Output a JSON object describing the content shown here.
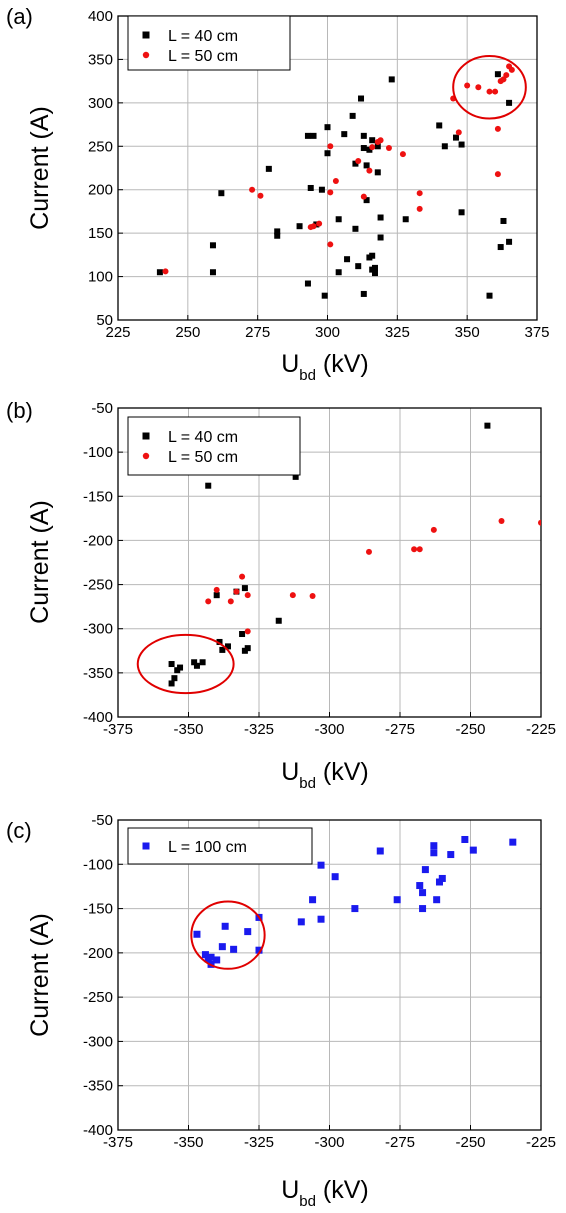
{
  "chart_data": [
    {
      "type": "scatter",
      "panel_label": "(a)",
      "xlabel": "U",
      "xlabel_sub": "bd",
      "xlabel_unit": " (kV)",
      "ylabel": "Current (A)",
      "xlim": [
        225,
        375
      ],
      "ylim": [
        50,
        400
      ],
      "xticks": [
        225,
        250,
        275,
        300,
        325,
        350,
        375
      ],
      "yticks": [
        50,
        100,
        150,
        200,
        250,
        300,
        350,
        400
      ],
      "grid": true,
      "legend_position": "top-left",
      "series": [
        {
          "name": "L = 40 cm",
          "marker": "square",
          "color": "#000000",
          "points": [
            [
              240,
              105
            ],
            [
              259,
              136
            ],
            [
              259,
              105
            ],
            [
              262,
              196
            ],
            [
              279,
              224
            ],
            [
              282,
              152
            ],
            [
              282,
              147
            ],
            [
              290,
              158
            ],
            [
              293,
              92
            ],
            [
              293,
              262
            ],
            [
              294,
              202
            ],
            [
              295,
              262
            ],
            [
              296,
              160
            ],
            [
              298,
              200
            ],
            [
              299,
              78
            ],
            [
              300,
              242
            ],
            [
              300,
              272
            ],
            [
              304,
              105
            ],
            [
              304,
              166
            ],
            [
              306,
              264
            ],
            [
              307,
              120
            ],
            [
              309,
              285
            ],
            [
              310,
              230
            ],
            [
              310,
              155
            ],
            [
              311,
              112
            ],
            [
              312,
              305
            ],
            [
              313,
              262
            ],
            [
              313,
              248
            ],
            [
              313,
              80
            ],
            [
              314,
              188
            ],
            [
              314,
              228
            ],
            [
              315,
              246
            ],
            [
              315,
              122
            ],
            [
              316,
              108
            ],
            [
              316,
              257
            ],
            [
              316,
              124
            ],
            [
              317,
              110
            ],
            [
              317,
              104
            ],
            [
              318,
              250
            ],
            [
              318,
              220
            ],
            [
              319,
              145
            ],
            [
              319,
              168
            ],
            [
              323,
              327
            ],
            [
              328,
              166
            ],
            [
              340,
              274
            ],
            [
              342,
              250
            ],
            [
              346,
              260
            ],
            [
              348,
              174
            ],
            [
              348,
              252
            ],
            [
              358,
              78
            ],
            [
              361,
              333
            ],
            [
              362,
              134
            ],
            [
              363,
              164
            ],
            [
              365,
              140
            ],
            [
              365,
              300
            ]
          ]
        },
        {
          "name": "L = 50 cm",
          "marker": "circle",
          "color": "#ee1111",
          "points": [
            [
              242,
              106
            ],
            [
              273,
              200
            ],
            [
              276,
              193
            ],
            [
              294,
              157
            ],
            [
              295,
              158
            ],
            [
              297,
              161
            ],
            [
              301,
              137
            ],
            [
              301,
              197
            ],
            [
              301,
              250
            ],
            [
              303,
              210
            ],
            [
              311,
              233
            ],
            [
              313,
              192
            ],
            [
              315,
              222
            ],
            [
              316,
              249
            ],
            [
              318,
              255
            ],
            [
              319,
              257
            ],
            [
              322,
              248
            ],
            [
              327,
              241
            ],
            [
              333,
              178
            ],
            [
              333,
              196
            ],
            [
              345,
              305
            ],
            [
              347,
              266
            ],
            [
              350,
              320
            ],
            [
              354,
              318
            ],
            [
              358,
              313
            ],
            [
              360,
              313
            ],
            [
              361,
              270
            ],
            [
              361,
              218
            ],
            [
              362,
              325
            ],
            [
              363,
              327
            ],
            [
              364,
              332
            ],
            [
              365,
              342
            ],
            [
              366,
              338
            ]
          ]
        }
      ],
      "annotation": {
        "shape": "circle",
        "center": [
          358,
          318
        ],
        "radius": [
          13,
          36
        ]
      }
    },
    {
      "type": "scatter",
      "panel_label": "(b)",
      "xlabel": "U",
      "xlabel_sub": "bd",
      "xlabel_unit": " (kV)",
      "ylabel": "Current (A)",
      "xlim": [
        -375,
        -225
      ],
      "ylim": [
        -400,
        -50
      ],
      "xticks": [
        -375,
        -350,
        -325,
        -300,
        -275,
        -250,
        -225
      ],
      "yticks": [
        -50,
        -100,
        -150,
        -200,
        -250,
        -300,
        -350,
        -400
      ],
      "grid": true,
      "legend_position": "top-left",
      "series": [
        {
          "name": "L = 40 cm",
          "marker": "square",
          "color": "#000000",
          "points": [
            [
              -356,
              -340
            ],
            [
              -356,
              -362
            ],
            [
              -355,
              -356
            ],
            [
              -354,
              -347
            ],
            [
              -353,
              -344
            ],
            [
              -348,
              -338
            ],
            [
              -347,
              -342
            ],
            [
              -345,
              -338
            ],
            [
              -343,
              -138
            ],
            [
              -340,
              -262
            ],
            [
              -339,
              -315
            ],
            [
              -338,
              -324
            ],
            [
              -336,
              -320
            ],
            [
              -333,
              -258
            ],
            [
              -331,
              -306
            ],
            [
              -330,
              -325
            ],
            [
              -330,
              -254
            ],
            [
              -329,
              -322
            ],
            [
              -318,
              -291
            ],
            [
              -312,
              -128
            ],
            [
              -244,
              -70
            ]
          ]
        },
        {
          "name": "L = 50 cm",
          "marker": "circle",
          "color": "#ee1111",
          "points": [
            [
              -343,
              -269
            ],
            [
              -340,
              -256
            ],
            [
              -335,
              -269
            ],
            [
              -333,
              -258
            ],
            [
              -331,
              -241
            ],
            [
              -329,
              -262
            ],
            [
              -329,
              -303
            ],
            [
              -313,
              -262
            ],
            [
              -306,
              -263
            ],
            [
              -286,
              -213
            ],
            [
              -270,
              -210
            ],
            [
              -268,
              -210
            ],
            [
              -263,
              -188
            ],
            [
              -239,
              -178
            ],
            [
              -225,
              -180
            ]
          ]
        }
      ],
      "annotation": {
        "shape": "circle",
        "center": [
          -351,
          -340
        ],
        "radius": [
          17,
          33
        ]
      }
    },
    {
      "type": "scatter",
      "panel_label": "(c)",
      "xlabel": "U",
      "xlabel_sub": "bd",
      "xlabel_unit": " (kV)",
      "ylabel": "Current (A)",
      "xlim": [
        -375,
        -225
      ],
      "ylim": [
        -400,
        -50
      ],
      "xticks": [
        -375,
        -350,
        -325,
        -300,
        -275,
        -250,
        -225
      ],
      "yticks": [
        -50,
        -100,
        -150,
        -200,
        -250,
        -300,
        -350,
        -400
      ],
      "grid": true,
      "legend_position": "top-left",
      "series": [
        {
          "name": "L = 100 cm",
          "marker": "square",
          "color": "#1a1aee",
          "points": [
            [
              -347,
              -179
            ],
            [
              -344,
              -202
            ],
            [
              -343,
              -207
            ],
            [
              -342,
              -213
            ],
            [
              -342,
              -205
            ],
            [
              -340,
              -208
            ],
            [
              -338,
              -193
            ],
            [
              -337,
              -170
            ],
            [
              -334,
              -196
            ],
            [
              -329,
              -176
            ],
            [
              -325,
              -160
            ],
            [
              -325,
              -197
            ],
            [
              -310,
              -165
            ],
            [
              -306,
              -140
            ],
            [
              -303,
              -162
            ],
            [
              -303,
              -101
            ],
            [
              -298,
              -114
            ],
            [
              -291,
              -150
            ],
            [
              -282,
              -85
            ],
            [
              -276,
              -140
            ],
            [
              -268,
              -124
            ],
            [
              -267,
              -132
            ],
            [
              -267,
              -150
            ],
            [
              -266,
              -106
            ],
            [
              -263,
              -79
            ],
            [
              -263,
              -87
            ],
            [
              -262,
              -140
            ],
            [
              -261,
              -120
            ],
            [
              -260,
              -116
            ],
            [
              -257,
              -89
            ],
            [
              -252,
              -72
            ],
            [
              -249,
              -84
            ],
            [
              -235,
              -75
            ]
          ]
        }
      ],
      "annotation": {
        "shape": "circle",
        "center": [
          -336,
          -180
        ],
        "radius": [
          13,
          38
        ]
      }
    }
  ]
}
